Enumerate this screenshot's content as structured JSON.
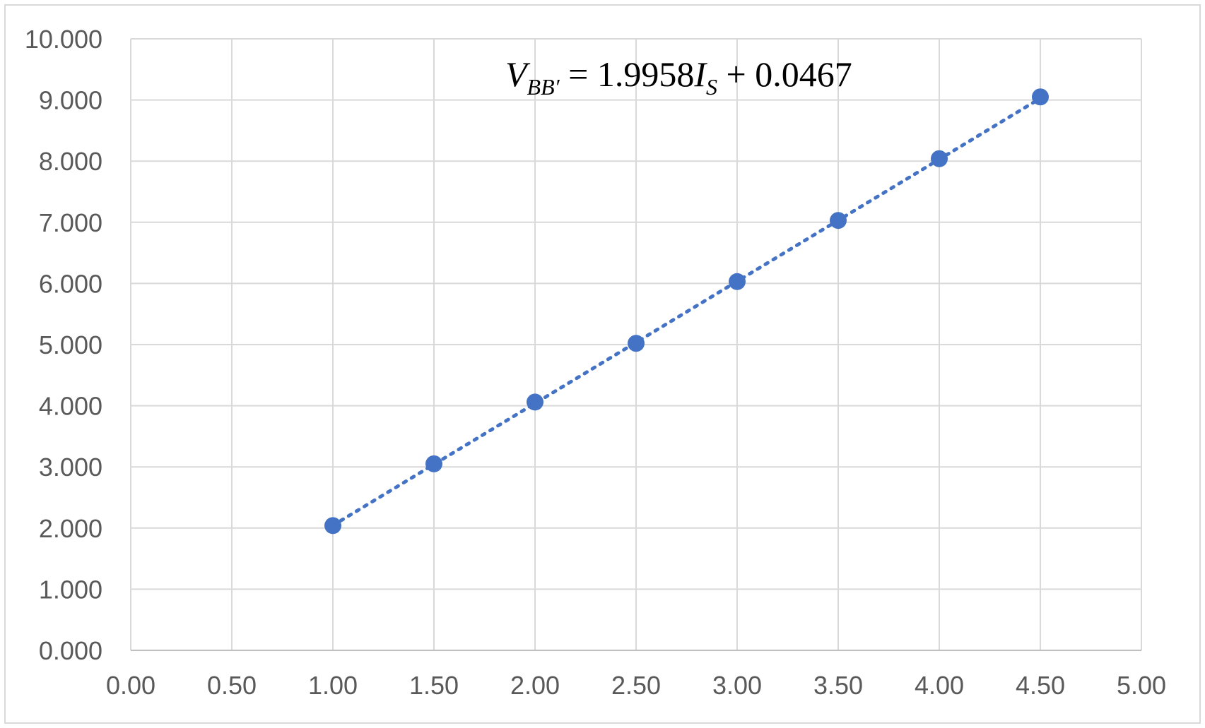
{
  "chart_data": {
    "type": "scatter",
    "title": "",
    "xlabel": "",
    "ylabel": "",
    "xlim": [
      0,
      5
    ],
    "ylim": [
      0,
      10
    ],
    "xticks": [
      "0.00",
      "0.50",
      "1.00",
      "1.50",
      "2.00",
      "2.50",
      "3.00",
      "3.50",
      "4.00",
      "4.50",
      "5.00"
    ],
    "yticks": [
      "0.000",
      "1.000",
      "2.000",
      "3.000",
      "4.000",
      "5.000",
      "6.000",
      "7.000",
      "8.000",
      "9.000",
      "10.000"
    ],
    "grid": true,
    "legend": "none",
    "series": [
      {
        "x": [
          1.0,
          1.5,
          2.0,
          2.5,
          3.0,
          3.5,
          4.0,
          4.5
        ],
        "y": [
          2.04,
          3.05,
          4.06,
          5.02,
          6.03,
          7.03,
          8.04,
          9.05
        ],
        "color": "#4472c4"
      }
    ],
    "trendline": {
      "style": "dotted",
      "color": "#4472c4",
      "slope": 1.9958,
      "intercept": 0.0467,
      "x_range": [
        1.0,
        4.5
      ]
    },
    "annotation": {
      "lhs_var": "V",
      "lhs_sub": "BB′",
      "equals": " = 1.9958",
      "rhs_var": "I",
      "rhs_sub": "S",
      "tail": " + 0.0467"
    }
  }
}
